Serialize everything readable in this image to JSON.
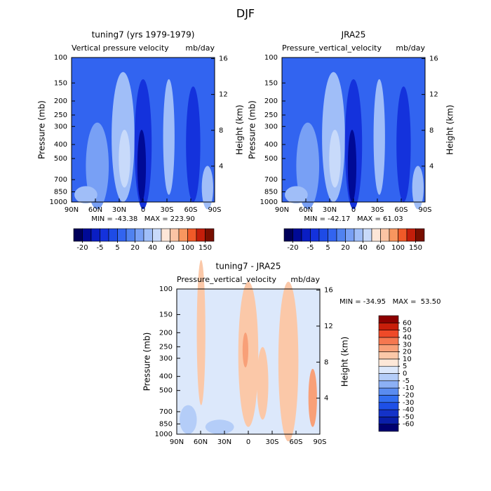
{
  "title": "DJF",
  "chart_data": [
    {
      "type": "contour",
      "title": "tuning7 (yrs 1979-1979)",
      "subtitle": "Vertical pressure velocity",
      "units": "mb/day",
      "ylabel": "Pressure (mb)",
      "y2label": "Height (km)",
      "xlim": [
        90,
        -90
      ],
      "xticks": [
        {
          "value": 90,
          "label": "90N"
        },
        {
          "value": 60,
          "label": "60N"
        },
        {
          "value": 30,
          "label": "30N"
        },
        0,
        {
          "value": -30,
          "label": "30S"
        },
        {
          "value": -60,
          "label": "60S"
        },
        {
          "value": -90,
          "label": "90S"
        }
      ],
      "ylim": [
        1000,
        100
      ],
      "log_y": true,
      "yticks": [
        100,
        150,
        200,
        250,
        300,
        400,
        500,
        700,
        850,
        1000
      ],
      "y2lim": [
        0,
        16.12
      ],
      "y2ticks": [
        4,
        8,
        12,
        16
      ],
      "annotation": "MIN = -43.38   MAX = 223.90",
      "colorbar": {
        "orientation": "horizontal",
        "ticks": [
          -20,
          -5,
          5,
          20,
          40,
          60,
          100,
          150
        ],
        "colors": [
          "#00005a",
          "#000a96",
          "#0a1ec3",
          "#1432dc",
          "#1e4be6",
          "#3264f0",
          "#5082f0",
          "#78a0f5",
          "#a0bef8",
          "#c8dafa",
          "#fde6d8",
          "#fbc4a4",
          "#f8965f",
          "#f05a28",
          "#c31e0a",
          "#780f00"
        ]
      }
    },
    {
      "type": "contour",
      "title": "JRA25",
      "subtitle": "Pressure_vertical_velocity",
      "units": "mb/day",
      "ylabel": "Pressure (mb)",
      "y2label": "Height (km)",
      "xlim": [
        90,
        -90
      ],
      "xticks": [
        {
          "value": 90,
          "label": "90N"
        },
        {
          "value": 60,
          "label": "60N"
        },
        {
          "value": 30,
          "label": "30N"
        },
        0,
        {
          "value": -30,
          "label": "30S"
        },
        {
          "value": -60,
          "label": "60S"
        },
        {
          "value": -90,
          "label": "90S"
        }
      ],
      "ylim": [
        1000,
        100
      ],
      "log_y": true,
      "yticks": [
        100,
        150,
        200,
        250,
        300,
        400,
        500,
        700,
        850,
        1000
      ],
      "y2lim": [
        0,
        16.12
      ],
      "y2ticks": [
        4,
        8,
        12,
        16
      ],
      "annotation": "MIN = -42.17   MAX = 61.03",
      "colorbar": {
        "orientation": "horizontal",
        "ticks": [
          -20,
          -5,
          5,
          20,
          40,
          60,
          100,
          150
        ],
        "colors": [
          "#00005a",
          "#000a96",
          "#0a1ec3",
          "#1432dc",
          "#1e4be6",
          "#3264f0",
          "#5082f0",
          "#78a0f5",
          "#a0bef8",
          "#c8dafa",
          "#fde6d8",
          "#fbc4a4",
          "#f8965f",
          "#f05a28",
          "#c31e0a",
          "#780f00"
        ]
      }
    },
    {
      "type": "contour",
      "title": "tuning7 - JRA25",
      "subtitle": "Pressure_vertical_velocity",
      "units": "mb/day",
      "ylabel": "Pressure (mb)",
      "y2label": "Height (km)",
      "xlim": [
        90,
        -90
      ],
      "xticks": [
        {
          "value": 90,
          "label": "90N"
        },
        {
          "value": 60,
          "label": "60N"
        },
        {
          "value": 30,
          "label": "30N"
        },
        0,
        {
          "value": -30,
          "label": "30S"
        },
        {
          "value": -60,
          "label": "60S"
        },
        {
          "value": -90,
          "label": "90S"
        }
      ],
      "ylim": [
        1000,
        100
      ],
      "log_y": true,
      "yticks": [
        100,
        150,
        200,
        250,
        300,
        400,
        500,
        700,
        850,
        1000
      ],
      "y2lim": [
        0,
        16.12
      ],
      "y2ticks": [
        4,
        8,
        12,
        16
      ],
      "annotation": "MIN = -34.95   MAX =  53.50",
      "colorbar": {
        "orientation": "vertical",
        "ticks": [
          -60,
          -50,
          -40,
          -30,
          -20,
          -10,
          -5,
          0,
          5,
          10,
          20,
          30,
          40,
          50,
          60
        ],
        "colors": [
          "#000070",
          "#0a1ea8",
          "#1432c8",
          "#1e50e6",
          "#326ef0",
          "#5a8cf0",
          "#8cb0f5",
          "#b4cdf8",
          "#dce8fb",
          "#fde8d8",
          "#fbc8a8",
          "#f8a078",
          "#f57850",
          "#ee4a28",
          "#c81e0a",
          "#8c0000"
        ]
      }
    }
  ]
}
